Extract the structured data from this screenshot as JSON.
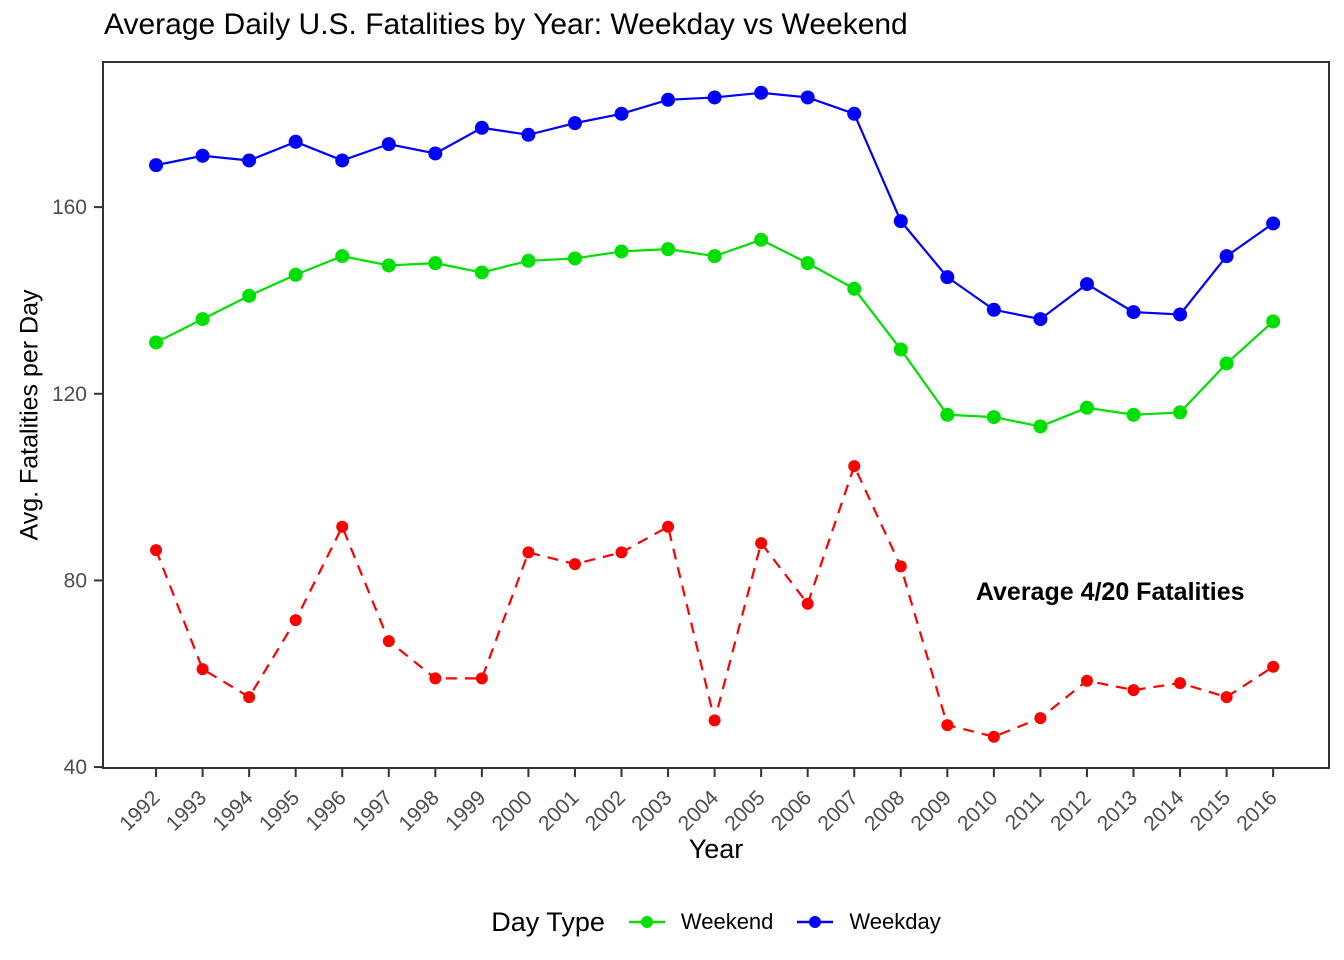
{
  "page": {
    "title": "Average Daily U.S. Fatalities by Year: Weekday vs Weekend"
  },
  "chart_data": {
    "type": "line",
    "title": "Average Daily U.S. Fatalities by Year: Weekday vs Weekend",
    "xlabel": "Year",
    "ylabel": "Avg. Fatalities per Day",
    "x": [
      1992,
      1993,
      1994,
      1995,
      1996,
      1997,
      1998,
      1999,
      2000,
      2001,
      2002,
      2003,
      2004,
      2005,
      2006,
      2007,
      2008,
      2009,
      2010,
      2011,
      2012,
      2013,
      2014,
      2015,
      2016
    ],
    "x_tick_labels": [
      "1992",
      "1993",
      "1994",
      "1995",
      "1996",
      "1997",
      "1998",
      "1999",
      "2000",
      "2001",
      "2002",
      "2003",
      "2004",
      "2005",
      "2006",
      "2007",
      "2008",
      "2009",
      "2010",
      "2011",
      "2012",
      "2013",
      "2014",
      "2015",
      "2016"
    ],
    "series": [
      {
        "name": "Average 4/20 Fatalities",
        "color": "#FF0000",
        "line_style": "dashed",
        "point_radius": 6,
        "in_legend": false,
        "values": [
          86.5,
          61,
          55,
          71.5,
          91.5,
          67,
          59,
          59,
          86,
          83.5,
          86,
          91.5,
          50,
          88,
          75,
          104.5,
          83,
          49,
          46.5,
          50.5,
          58.5,
          56.5,
          58,
          55,
          61.5
        ]
      },
      {
        "name": "Weekend",
        "color": "#00E000",
        "line_style": "solid",
        "point_radius": 7,
        "in_legend": true,
        "values": [
          131,
          136,
          141,
          145.5,
          149.5,
          147.5,
          148,
          146,
          148.5,
          149,
          150.5,
          151,
          149.5,
          153,
          148,
          142.5,
          129.5,
          115.5,
          115,
          113,
          117,
          115.5,
          116,
          126.5,
          135.5
        ]
      },
      {
        "name": "Weekday",
        "color": "#0000FF",
        "line_style": "solid",
        "point_radius": 7,
        "in_legend": true,
        "values": [
          169,
          171,
          170,
          174,
          170,
          173.5,
          171.5,
          177,
          175.5,
          178,
          180,
          183,
          183.5,
          184.5,
          183.5,
          180,
          157,
          145,
          138,
          136,
          143.5,
          137.5,
          137,
          149.5,
          156.5
        ]
      }
    ],
    "yticks": [
      40,
      80,
      120,
      160
    ],
    "ylim": [
      39.8,
      191.1
    ],
    "xlim": [
      1990.86,
      2017.2
    ],
    "grid": false,
    "legend": {
      "title": "Day Type",
      "position": "bottom",
      "entries": [
        {
          "label": "Weekend",
          "color": "#00E000"
        },
        {
          "label": "Weekday",
          "color": "#0000FF"
        }
      ]
    },
    "annotation": {
      "text": "Average 4/20 Fatalities",
      "x": 2012.5,
      "y": 77.7
    },
    "axis_text_color": "#4D4D4D",
    "axis_line_color": "#333333"
  }
}
